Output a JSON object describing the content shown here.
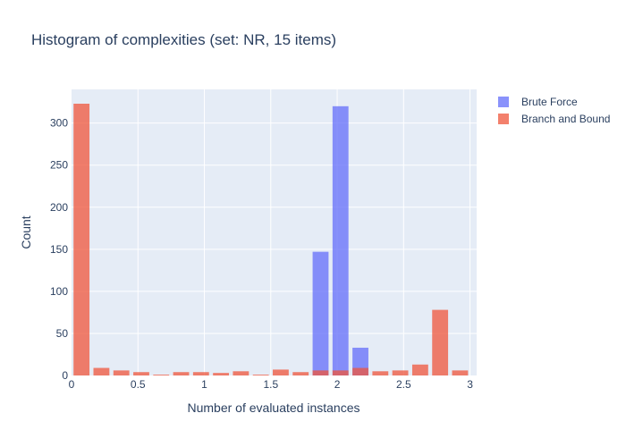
{
  "chart_data": {
    "type": "bar",
    "title": "Histogram of complexities (set: NR, 15 items)",
    "xlabel": "Number of evaluated instances",
    "ylabel": "Count",
    "xlim": [
      0,
      3.05
    ],
    "ylim": [
      0,
      340
    ],
    "xticks": [
      0,
      0.5,
      1,
      1.5,
      2,
      2.5,
      3
    ],
    "xtick_labels": [
      "0",
      "0.5",
      "1",
      "1.5",
      "2",
      "2.5",
      "3"
    ],
    "yticks": [
      0,
      50,
      100,
      150,
      200,
      250,
      300
    ],
    "ytick_labels": [
      "0",
      "50",
      "100",
      "150",
      "200",
      "250",
      "300"
    ],
    "grid": true,
    "legend_position": "top-right",
    "bin_width": 0.15,
    "bin_starts": [
      0,
      0.15,
      0.3,
      0.45,
      0.6,
      0.75,
      0.9,
      1.05,
      1.2,
      1.35,
      1.5,
      1.65,
      1.8,
      1.95,
      2.1,
      2.25,
      2.4,
      2.55,
      2.7,
      2.85
    ],
    "series": [
      {
        "name": "Brute Force",
        "color": "#636efa",
        "values": [
          0,
          0,
          0,
          0,
          0,
          0,
          0,
          0,
          0,
          0,
          0,
          0,
          147,
          320,
          33,
          0,
          0,
          0,
          0,
          0
        ]
      },
      {
        "name": "Branch and Bound",
        "color": "#ef553b",
        "values": [
          323,
          9,
          6,
          4,
          1,
          4,
          4,
          3,
          5,
          1,
          7,
          4,
          6,
          6,
          9,
          5,
          6,
          13,
          78,
          6
        ]
      }
    ]
  }
}
